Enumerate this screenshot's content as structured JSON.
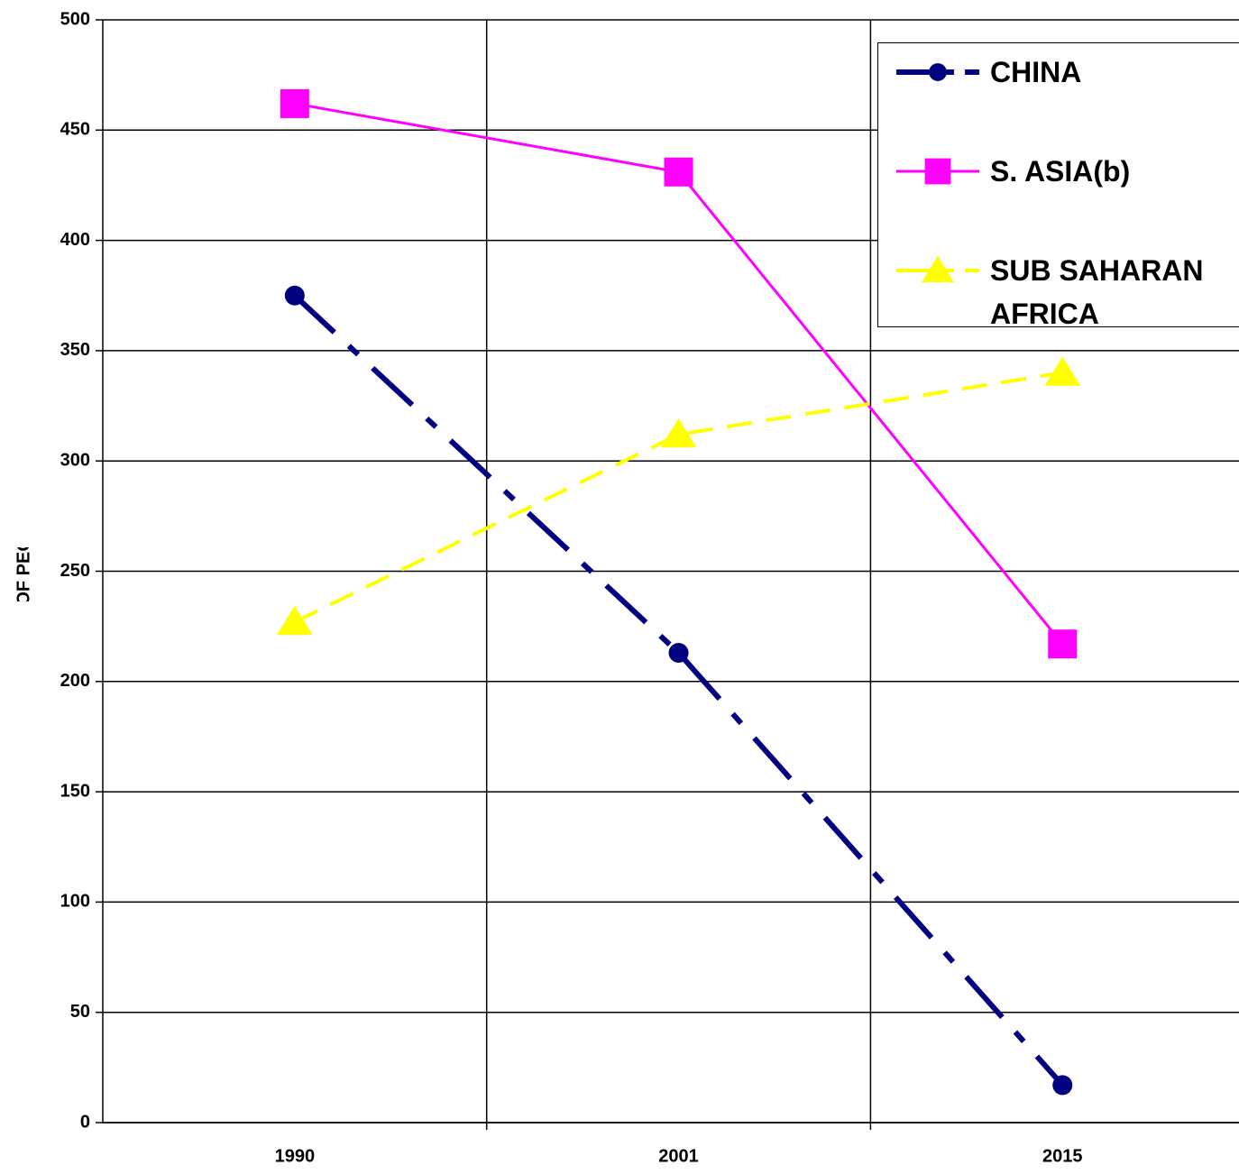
{
  "chart_data": {
    "type": "line",
    "y_label": "NUMBER OF PEOPLE, MN",
    "categories": [
      "1990",
      "2001",
      "2015"
    ],
    "series": [
      {
        "name": "CHINA",
        "color": "#000080",
        "marker": "circle",
        "dash": "dashdot",
        "values": [
          375,
          213,
          17
        ]
      },
      {
        "name": "S. ASIA(b)",
        "color": "#ff00ff",
        "marker": "square",
        "dash": "solid",
        "values": [
          462,
          431,
          217
        ]
      },
      {
        "name": "SUB SAHARAN AFRICA",
        "color": "#ffff00",
        "marker": "triangle",
        "dash": "dashed",
        "values": [
          227,
          312,
          340
        ]
      }
    ],
    "ylim": [
      0,
      500
    ],
    "yticks": [
      0,
      50,
      100,
      150,
      200,
      250,
      300,
      350,
      400,
      450,
      500
    ],
    "grid": true,
    "legend": "upper right"
  }
}
